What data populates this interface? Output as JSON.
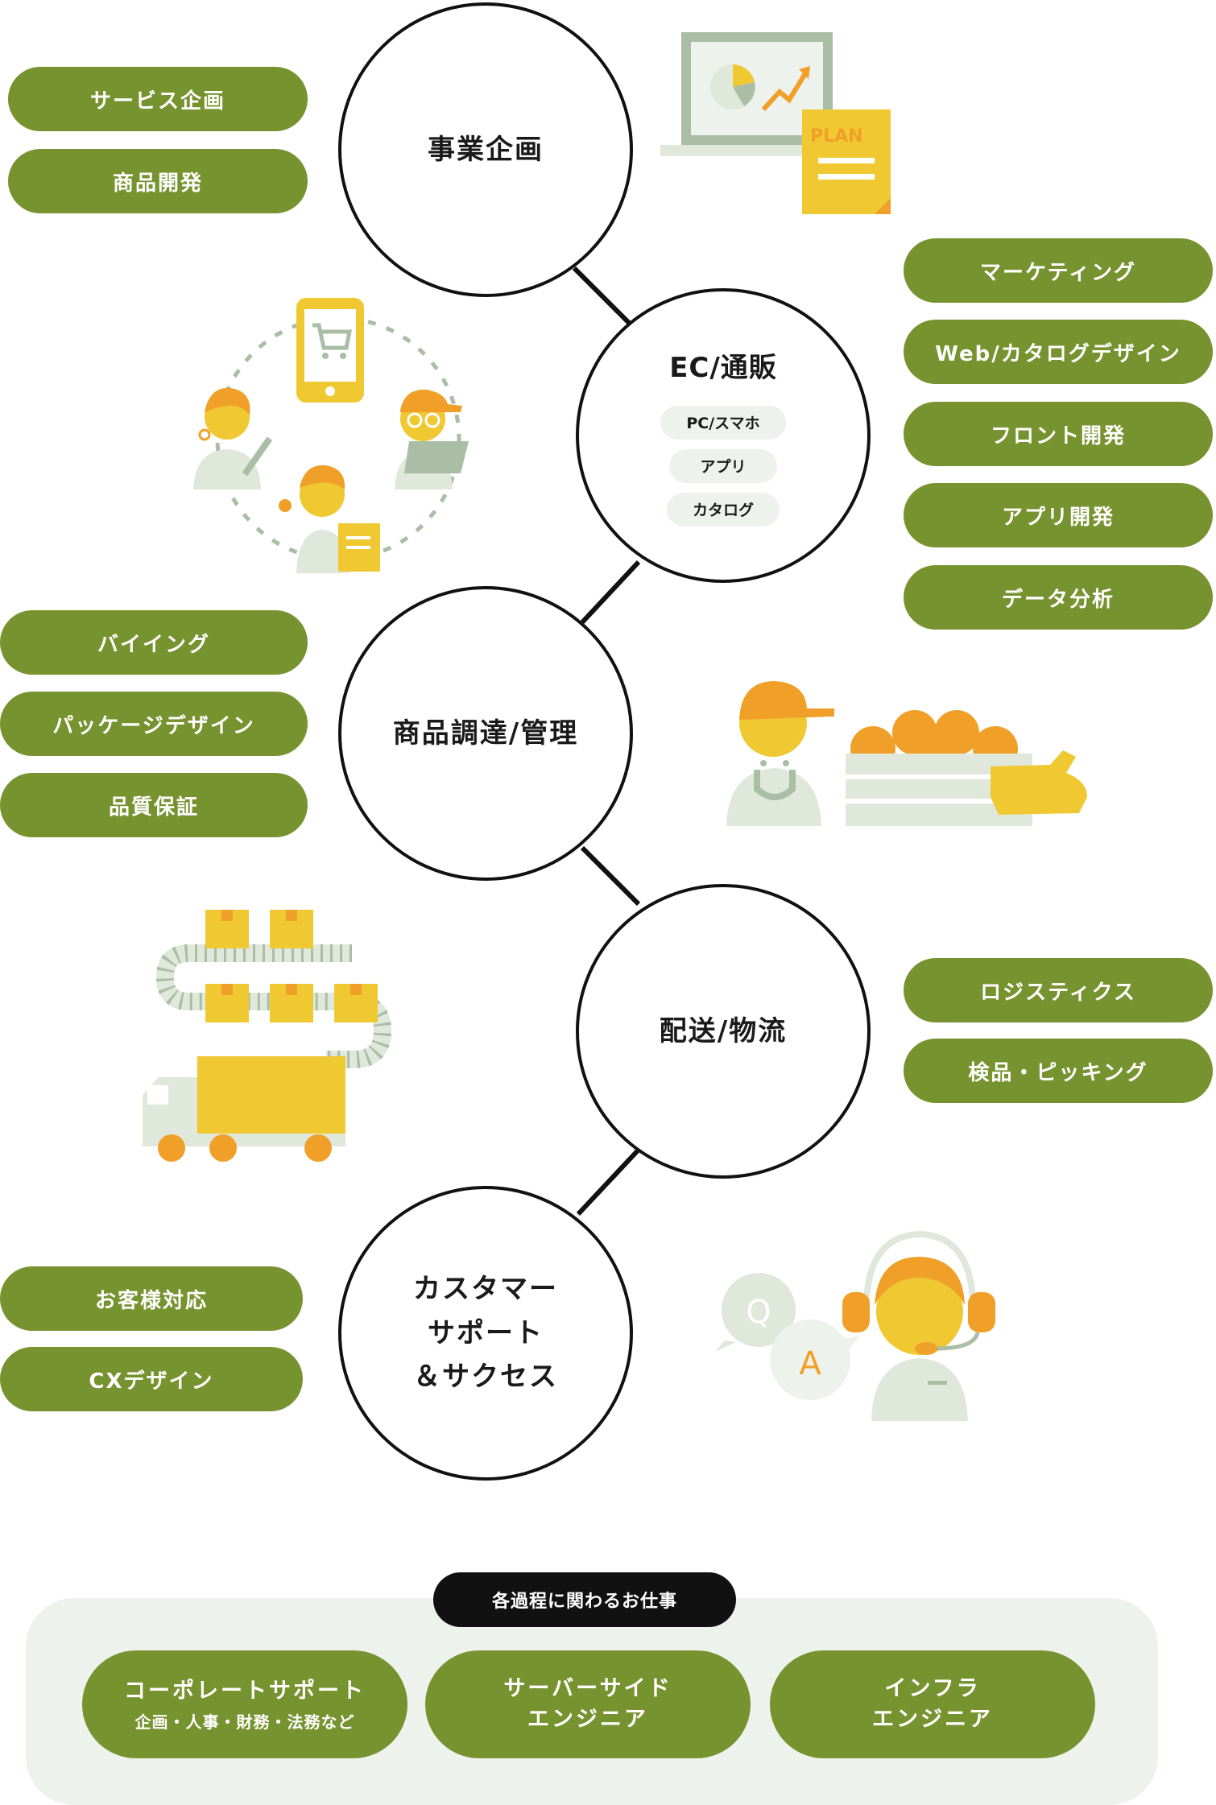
{
  "stages": {
    "planning": {
      "title": "事業企画"
    },
    "ec": {
      "title": "EC/通販",
      "subs": [
        "PC/スマホ",
        "アプリ",
        "カタログ"
      ]
    },
    "procurement": {
      "title": "商品調達/管理"
    },
    "logistics": {
      "title": "配送/物流"
    },
    "cs": {
      "title_lines": [
        "カスタマー",
        "サポート",
        "＆サクセス"
      ]
    }
  },
  "roles": {
    "planning": [
      "サービス企画",
      "商品開発"
    ],
    "ec": [
      "マーケティング",
      "Web/カタログデザイン",
      "フロント開発",
      "アプリ開発",
      "データ分析"
    ],
    "procurement": [
      "バイイング",
      "パッケージデザイン",
      "品質保証"
    ],
    "logistics": [
      "ロジスティクス",
      "検品・ピッキング"
    ],
    "cs": [
      "お客様対応",
      "CXデザイン"
    ]
  },
  "illustration_labels": {
    "plan": "PLAN",
    "q": "Q",
    "a": "A"
  },
  "footer": {
    "badge": "各過程に関わるお仕事",
    "cards": [
      {
        "line1": "コーポレートサポート",
        "line2": "企画・人事・財務・法務など"
      },
      {
        "line1": "サーバーサイド",
        "line2": "エンジニア"
      },
      {
        "line1": "インフラ",
        "line2": "エンジニア"
      }
    ]
  },
  "colors": {
    "green": "#77932f",
    "yellow": "#f0c832",
    "orange": "#f0a028",
    "pale": "#dfe8da",
    "sage": "#a9bea5",
    "black": "#111111"
  }
}
